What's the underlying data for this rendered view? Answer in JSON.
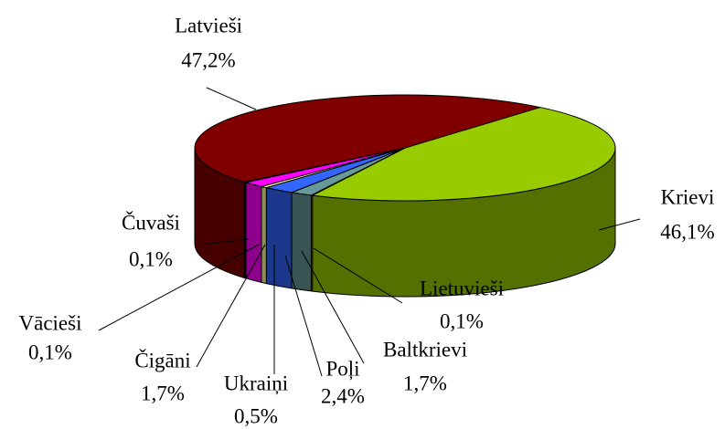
{
  "chart_data": {
    "type": "pie",
    "categories": [
      "Krievi",
      "Lietuvieši",
      "Baltkrievi",
      "Poļi",
      "Ukraiņi",
      "Čigāni",
      "Vācieši",
      "Čuvaši",
      "Latvieši"
    ],
    "values": [
      46.1,
      0.1,
      1.7,
      2.4,
      0.5,
      1.7,
      0.1,
      0.1,
      47.2
    ],
    "value_labels": [
      "46,1%",
      "0,1%",
      "1,7%",
      "2,4%",
      "0,5%",
      "1,7%",
      "0,1%",
      "0,1%",
      "47,2%"
    ],
    "colors": [
      "#99cc00",
      "#ccffff",
      "#669999",
      "#3366ff",
      "#ffff99",
      "#ff00ff",
      "#993399",
      "#cc00cc",
      "#800000"
    ]
  }
}
